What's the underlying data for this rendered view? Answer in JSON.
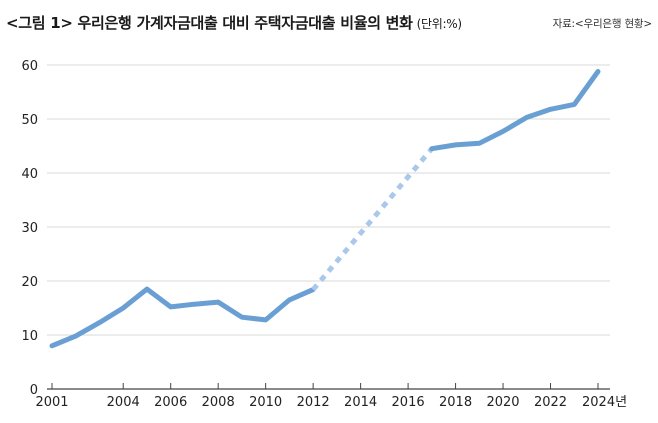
{
  "chart_data": {
    "type": "line",
    "title": "<그림 1> 우리은행 가계자금대출 대비 주택자금대출 비율의 변화",
    "unit": "(단위:%)",
    "source": "자료:<우리은행 현황>",
    "xlabel": "",
    "ylabel": "",
    "xlim": [
      2001,
      2024
    ],
    "ylim": [
      0,
      60
    ],
    "yticks": [
      0,
      10,
      20,
      30,
      40,
      50,
      60
    ],
    "xtick_labels": [
      {
        "year": 2001,
        "label": "2001"
      },
      {
        "year": 2004,
        "label": "2004"
      },
      {
        "year": 2006,
        "label": "2006"
      },
      {
        "year": 2008,
        "label": "2008"
      },
      {
        "year": 2010,
        "label": "2010"
      },
      {
        "year": 2012,
        "label": "2012"
      },
      {
        "year": 2014,
        "label": "2014"
      },
      {
        "year": 2016,
        "label": "2016"
      },
      {
        "year": 2018,
        "label": "2018"
      },
      {
        "year": 2020,
        "label": "2020"
      },
      {
        "year": 2022,
        "label": "2022"
      },
      {
        "year": 2024,
        "label": "2024년"
      }
    ],
    "grid": true,
    "series": [
      {
        "name": "solid-2001-2012",
        "style": "solid",
        "color": "#6a9fd4",
        "x": [
          2001,
          2002,
          2003,
          2004,
          2005,
          2006,
          2007,
          2008,
          2009,
          2010,
          2011,
          2012
        ],
        "y": [
          8.0,
          9.8,
          12.3,
          15.0,
          18.5,
          15.2,
          15.7,
          16.1,
          13.3,
          12.8,
          16.5,
          18.4
        ]
      },
      {
        "name": "gap-2012-2017",
        "style": "dotted",
        "color": "#a9c8ea",
        "x": [
          2012,
          2017
        ],
        "y": [
          18.4,
          44.5
        ]
      },
      {
        "name": "solid-2017-2024",
        "style": "solid",
        "color": "#6a9fd4",
        "x": [
          2017,
          2018,
          2019,
          2020,
          2021,
          2022,
          2023,
          2024
        ],
        "y": [
          44.5,
          45.2,
          45.5,
          47.7,
          50.3,
          51.8,
          52.7,
          58.8
        ]
      }
    ]
  }
}
